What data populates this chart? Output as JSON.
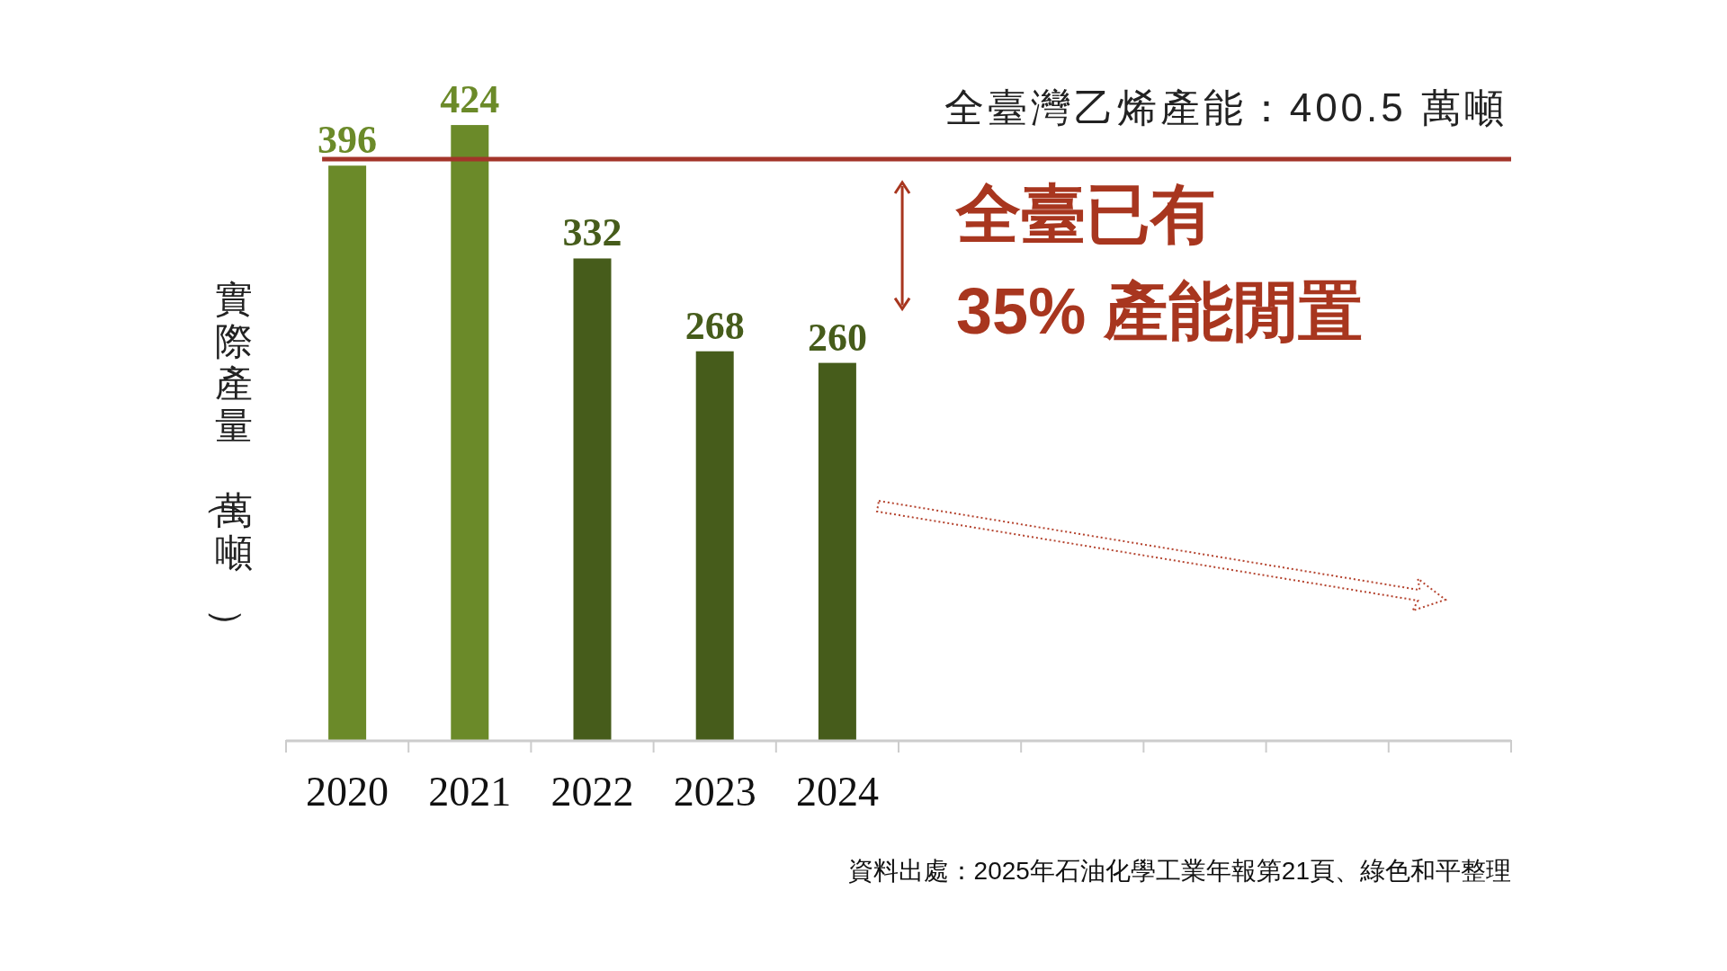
{
  "chart_data": {
    "type": "bar",
    "ylabel": "實際產量（萬噸）",
    "categories": [
      "2020",
      "2021",
      "2022",
      "2023",
      "2024",
      null,
      null,
      null,
      null,
      null
    ],
    "values": [
      396,
      424,
      332,
      268,
      260,
      null,
      null,
      null,
      null,
      null
    ],
    "colors": [
      "#6b8a29",
      "#6b8a29",
      "#465c1b",
      "#465c1b",
      "#465c1b",
      null,
      null,
      null,
      null,
      null
    ],
    "data_labels": true,
    "ref_lines": [
      {
        "axis": "y",
        "value": 400.5,
        "label": "全臺灣乙烯產能：400.5 萬噸",
        "color": "#a3352a",
        "line_style": "solid"
      }
    ],
    "annotations": [
      "全臺已有\n35% 產能閒置",
      "資料出處：2025年石油化學工業年報第21頁、綠色和平整理"
    ]
  }
}
